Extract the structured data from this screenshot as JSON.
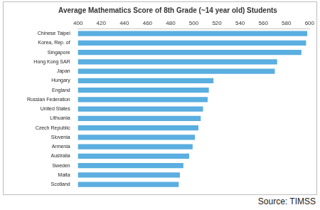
{
  "chart_data": {
    "type": "bar",
    "title": "Average Mathematics Score of 8th Grade (~14 year old) Students",
    "orientation": "horizontal",
    "categories": [
      "Chinese Taipei",
      "Korea, Rep. of",
      "Singapore",
      "Hong Kong SAR",
      "Japan",
      "Hungary",
      "England",
      "Russian Federation",
      "United States",
      "Lithuania",
      "Czech Republic",
      "Slovenia",
      "Armenia",
      "Australia",
      "Sweden",
      "Malta",
      "Scotland"
    ],
    "values": [
      598,
      597,
      593,
      572,
      570,
      517,
      513,
      512,
      508,
      506,
      504,
      501,
      499,
      496,
      491,
      488,
      487
    ],
    "color": "#5aaee0",
    "xlim": [
      400,
      600
    ],
    "xticks": [
      400,
      420,
      440,
      460,
      480,
      500,
      520,
      540,
      560,
      580,
      600
    ],
    "grid": false,
    "annotations": [
      "Source: TIMSS"
    ]
  }
}
